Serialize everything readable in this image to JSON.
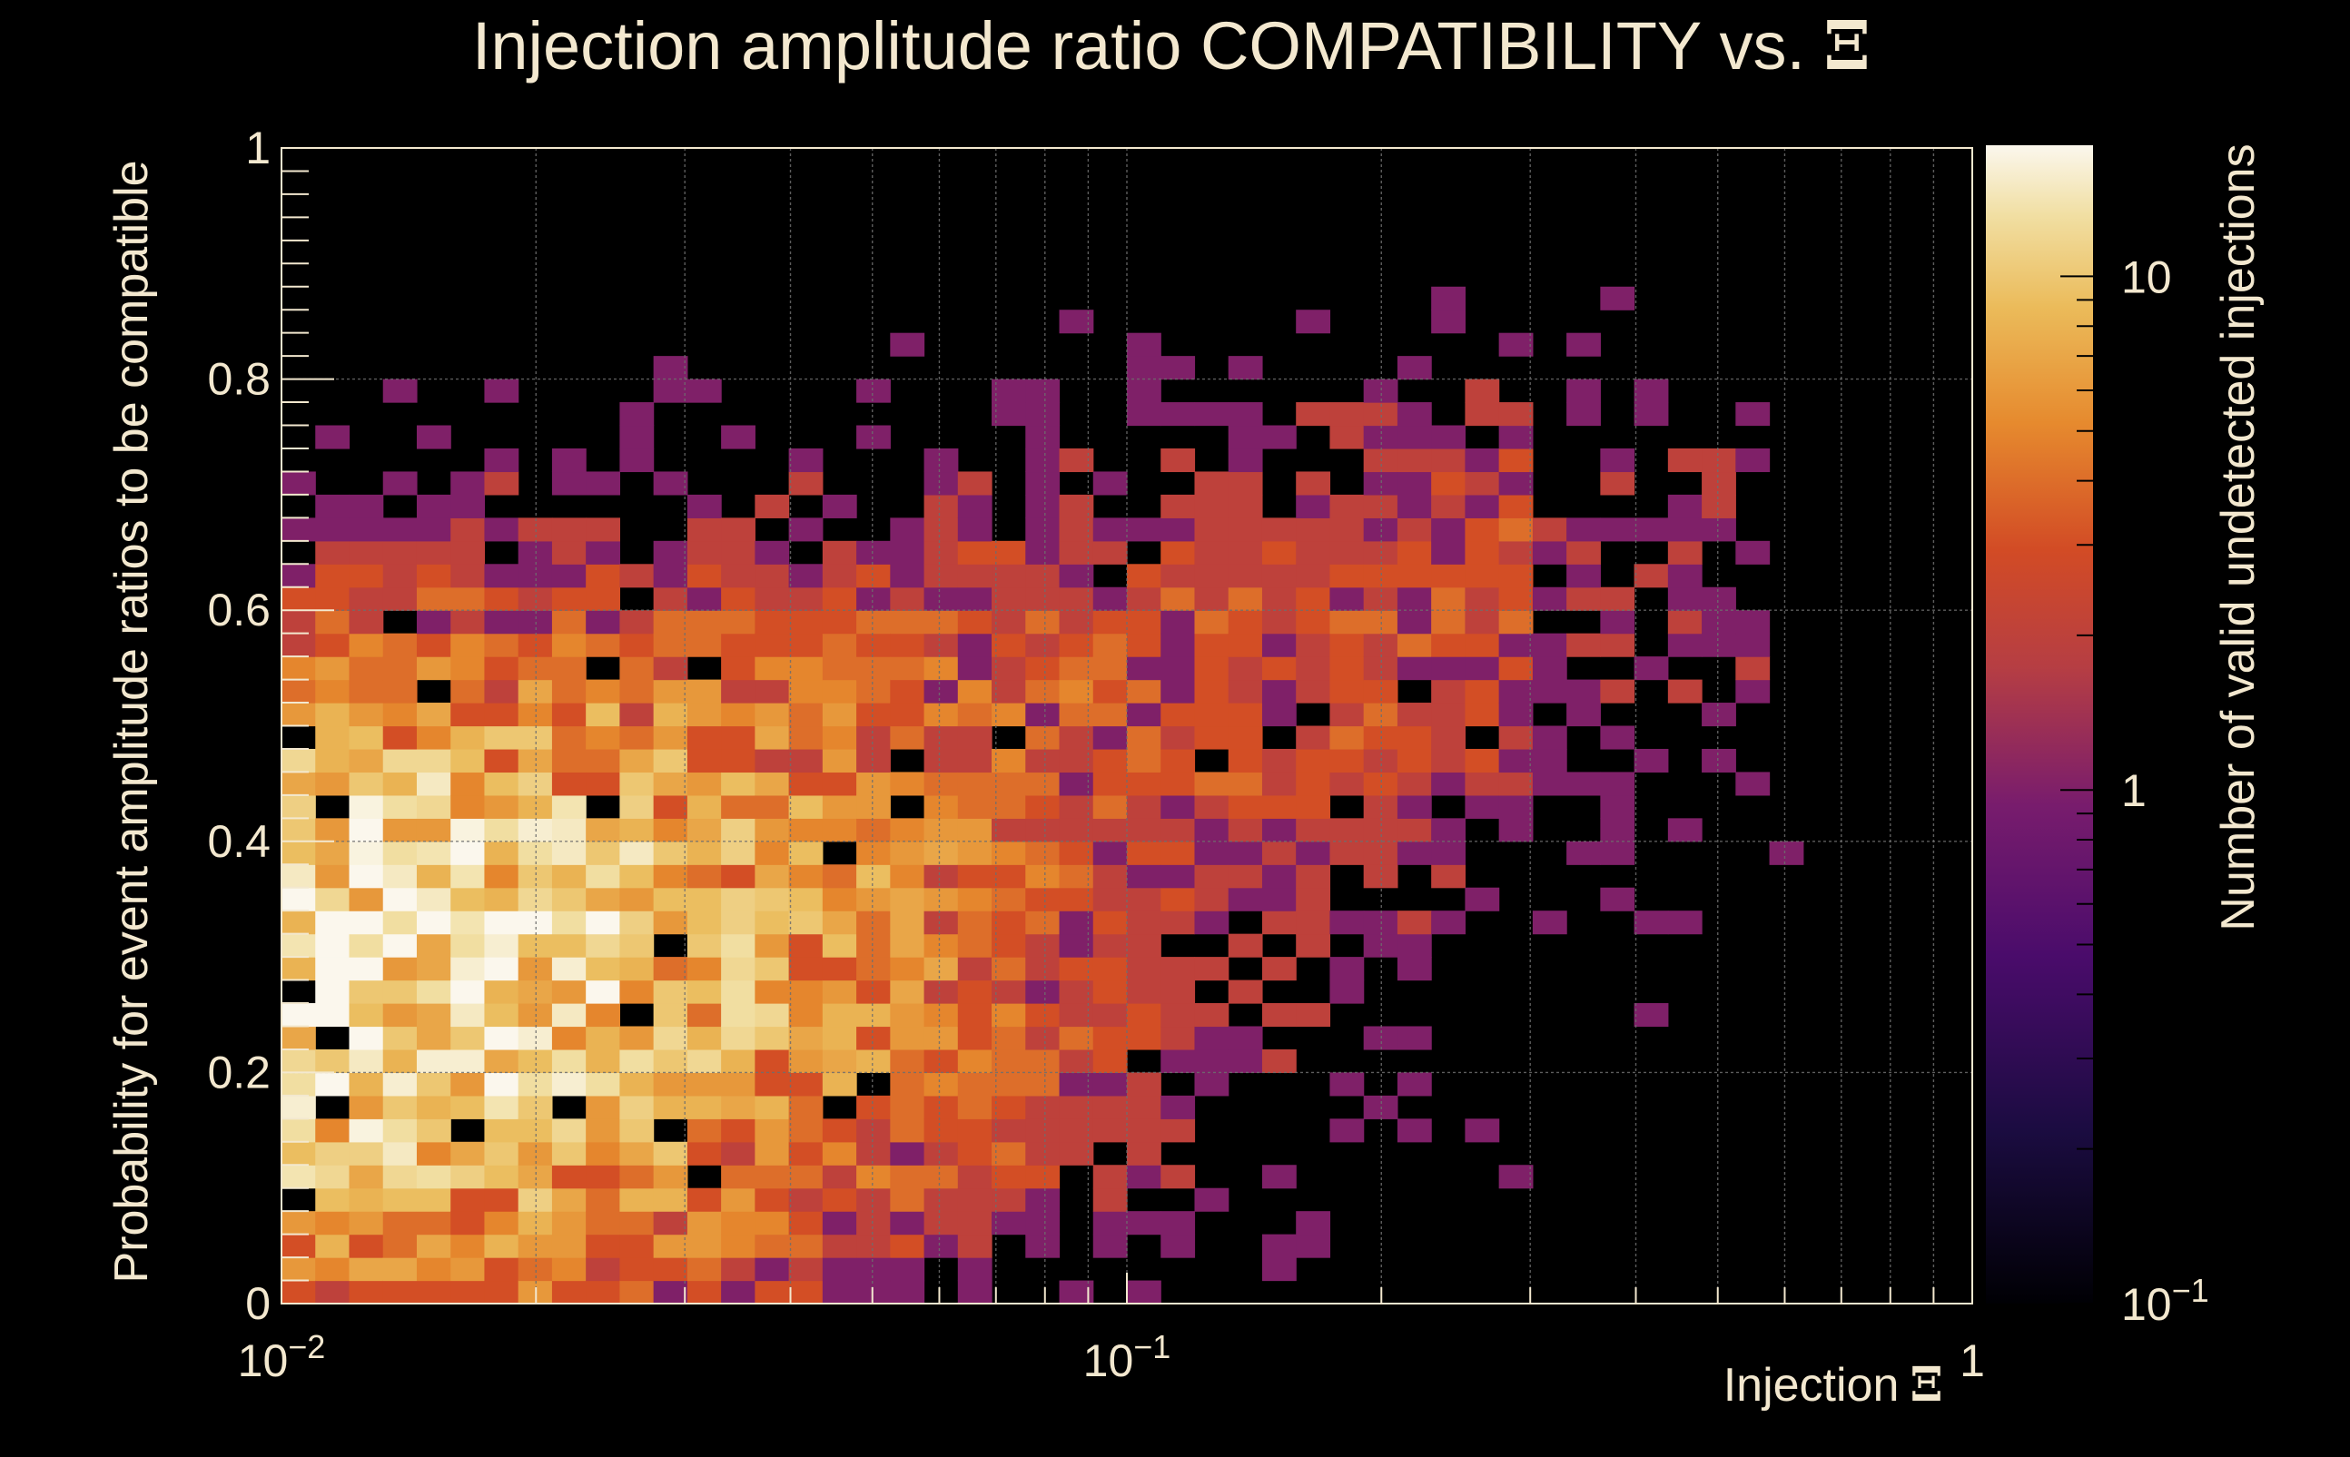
{
  "chart_data": {
    "type": "heatmap",
    "title": "Injection amplitude ratio COMPATIBILITY vs.",
    "title_symbol": "Ξ",
    "xlabel": "Injection",
    "xlabel_symbol": "Ξ",
    "ylabel": "Probability for event amplitude ratios to be compatible",
    "zlabel": "Number of valid undetected injections",
    "x_scale": "log",
    "xlim": [
      0.01,
      1
    ],
    "ylim": [
      0,
      1
    ],
    "z_scale": "log",
    "zlim": [
      0.1,
      18
    ],
    "x_ticks": [
      {
        "value": 0.01,
        "label": "10",
        "exponent": "−2"
      },
      {
        "value": 0.1,
        "label": "10",
        "exponent": "−1"
      },
      {
        "value": 1,
        "label": "1",
        "exponent": ""
      }
    ],
    "y_ticks": [
      {
        "value": 0,
        "label": "0"
      },
      {
        "value": 0.2,
        "label": "0.2"
      },
      {
        "value": 0.4,
        "label": "0.4"
      },
      {
        "value": 0.6,
        "label": "0.6"
      },
      {
        "value": 0.8,
        "label": "0.8"
      },
      {
        "value": 1,
        "label": "1"
      }
    ],
    "z_ticks": [
      {
        "value": 0.1,
        "label": "10",
        "exponent": "−1"
      },
      {
        "value": 1,
        "label": "1",
        "exponent": ""
      },
      {
        "value": 10,
        "label": "10",
        "exponent": ""
      }
    ],
    "grid": true,
    "colormap": "inferno-like",
    "x_bins": 50,
    "y_bins": 50,
    "description_of_counts": "Counts of valid undetected injections per bin; empty bins not drawn",
    "density": {
      "core_center_log10x": -1.98,
      "core_center_y": 0.27,
      "core_peak_count": 15,
      "main_band_slope_note": "occupied region spans toward larger Ξ and larger probability",
      "random_seed": 7
    }
  },
  "colors": {
    "background": "#000000",
    "text": "#f3e8cf",
    "grid": "#6e6e6e",
    "frame": "#f3e8cf"
  }
}
